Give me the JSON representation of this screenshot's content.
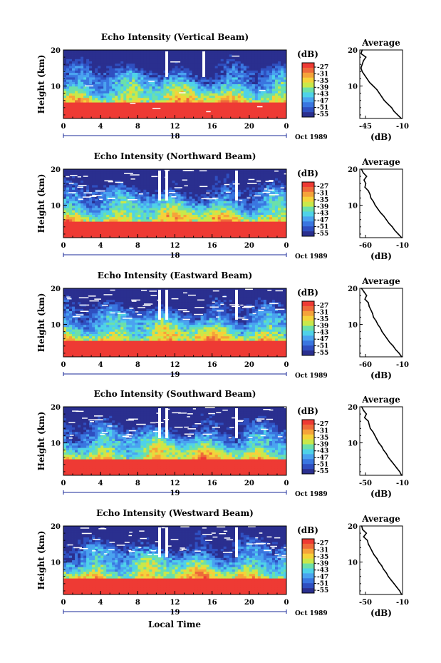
{
  "x_axis_label": "Local Time",
  "height_label": "Height (km)",
  "colorbar_unit": "(dB)",
  "colorbar_ticks": [
    "-27",
    "-31",
    "-35",
    "-39",
    "-43",
    "-47",
    "-51",
    "-55"
  ],
  "colorbar_colors": [
    "#2a2f8f",
    "#2f4fc0",
    "#3a76e0",
    "#4aa3f0",
    "#4fd2e8",
    "#6de0a8",
    "#c9e84a",
    "#f5d23a",
    "#f5a33a",
    "#ee6a3a",
    "#ee3a34"
  ],
  "time_ticks": [
    "0",
    "4",
    "8",
    "12",
    "16",
    "20",
    "0"
  ],
  "height_ticks": [
    "20",
    "10"
  ],
  "month_label": "Oct 1989",
  "avg_title": "Average",
  "avg_unit": "(dB)",
  "chart_data": [
    {
      "type": "heatmap",
      "title": "Echo Intensity (Vertical Beam)",
      "date": "18",
      "x": [
        0,
        4,
        8,
        12,
        16,
        20,
        24
      ],
      "xlim": [
        0,
        24
      ],
      "ylim": [
        1,
        20
      ],
      "ylabel": "Height (km)",
      "colorbar_range": [
        -55,
        -27
      ],
      "average_profile": {
        "xlabel": "(dB)",
        "xticks": [
          "-45",
          "-10"
        ],
        "xlim": [
          -45,
          -10
        ],
        "yticks": [
          "20",
          "10"
        ],
        "height": [
          20,
          19,
          18,
          17,
          16,
          15,
          14,
          13,
          12,
          11,
          10,
          9,
          8,
          7,
          6,
          5,
          4,
          3,
          2,
          1
        ],
        "values": [
          -43,
          -44,
          -40,
          -42,
          -43,
          -44,
          -43,
          -41,
          -39,
          -37,
          -34,
          -31,
          -29,
          -27,
          -25,
          -22,
          -19,
          -17,
          -14,
          -11
        ]
      }
    },
    {
      "type": "heatmap",
      "title": "Echo Intensity (Northward Beam)",
      "date": "18",
      "x": [
        0,
        4,
        8,
        12,
        16,
        20,
        24
      ],
      "xlim": [
        0,
        24
      ],
      "ylim": [
        1,
        20
      ],
      "ylabel": "Height (km)",
      "colorbar_range": [
        -55,
        -27
      ],
      "average_profile": {
        "xlabel": "(dB)",
        "xticks": [
          "-60",
          "-10"
        ],
        "xlim": [
          -60,
          -10
        ],
        "yticks": [
          "20",
          "10"
        ],
        "height": [
          20,
          19,
          18,
          17,
          16,
          15,
          14,
          13,
          12,
          11,
          10,
          9,
          8,
          7,
          6,
          5,
          4,
          3,
          2,
          1
        ],
        "values": [
          -58,
          -56,
          -52,
          -55,
          -53,
          -54,
          -50,
          -48,
          -47,
          -44,
          -42,
          -39,
          -36,
          -32,
          -29,
          -26,
          -22,
          -19,
          -15,
          -11
        ]
      }
    },
    {
      "type": "heatmap",
      "title": "Echo Intensity (Eastward Beam)",
      "date": "19",
      "x": [
        0,
        4,
        8,
        12,
        16,
        20,
        24
      ],
      "xlim": [
        0,
        24
      ],
      "ylim": [
        1,
        20
      ],
      "ylabel": "Height (km)",
      "colorbar_range": [
        -55,
        -27
      ],
      "average_profile": {
        "xlabel": "(dB)",
        "xticks": [
          "-60",
          "-10"
        ],
        "xlim": [
          -60,
          -10
        ],
        "yticks": [
          "20",
          "10"
        ],
        "height": [
          20,
          19,
          18,
          17,
          16,
          15,
          14,
          13,
          12,
          11,
          10,
          9,
          8,
          7,
          6,
          5,
          4,
          3,
          2,
          1
        ],
        "values": [
          -58,
          -55,
          -52,
          -54,
          -50,
          -49,
          -47,
          -45,
          -44,
          -41,
          -39,
          -36,
          -34,
          -31,
          -28,
          -25,
          -21,
          -18,
          -14,
          -11
        ]
      }
    },
    {
      "type": "heatmap",
      "title": "Echo Intensity (Southward Beam)",
      "date": "19",
      "x": [
        0,
        4,
        8,
        12,
        16,
        20,
        24
      ],
      "xlim": [
        0,
        24
      ],
      "ylim": [
        1,
        20
      ],
      "ylabel": "Height (km)",
      "colorbar_range": [
        -55,
        -27
      ],
      "average_profile": {
        "xlabel": "(dB)",
        "xticks": [
          "-50",
          "-10"
        ],
        "xlim": [
          -55,
          -10
        ],
        "yticks": [
          "20",
          "10"
        ],
        "height": [
          20,
          19,
          18,
          17,
          16,
          15,
          14,
          13,
          12,
          11,
          10,
          9,
          8,
          7,
          6,
          5,
          4,
          3,
          2,
          1
        ],
        "values": [
          -53,
          -51,
          -48,
          -50,
          -46,
          -45,
          -44,
          -41,
          -39,
          -37,
          -35,
          -32,
          -30,
          -27,
          -25,
          -22,
          -19,
          -16,
          -13,
          -11
        ]
      }
    },
    {
      "type": "heatmap",
      "title": "Echo Intensity (Westward Beam)",
      "date": "19",
      "x": [
        0,
        4,
        8,
        12,
        16,
        20,
        24
      ],
      "xlim": [
        0,
        24
      ],
      "ylim": [
        1,
        20
      ],
      "ylabel": "Height (km)",
      "colorbar_range": [
        -55,
        -27
      ],
      "average_profile": {
        "xlabel": "(dB)",
        "xticks": [
          "-50",
          "-10"
        ],
        "xlim": [
          -55,
          -10
        ],
        "yticks": [
          "20",
          "10"
        ],
        "height": [
          20,
          19,
          18,
          17,
          16,
          15,
          14,
          13,
          12,
          11,
          10,
          9,
          8,
          7,
          6,
          5,
          4,
          3,
          2,
          1
        ],
        "values": [
          -53,
          -52,
          -48,
          -51,
          -47,
          -46,
          -44,
          -42,
          -40,
          -37,
          -35,
          -32,
          -30,
          -27,
          -25,
          -22,
          -19,
          -16,
          -13,
          -11
        ]
      }
    }
  ]
}
